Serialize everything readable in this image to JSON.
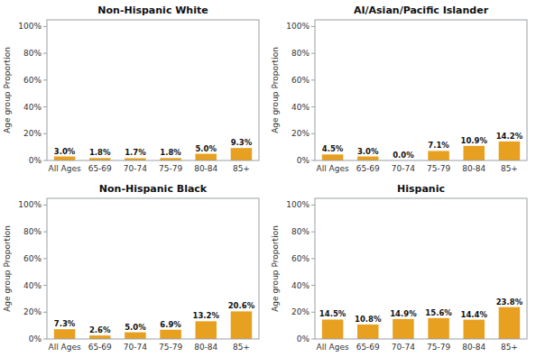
{
  "chart_data": [
    {
      "type": "bar",
      "title": "Non-Hispanic White",
      "categories": [
        "All Ages",
        "65-69",
        "70-74",
        "75-79",
        "80-84",
        "85+"
      ],
      "values": [
        3.0,
        1.8,
        1.7,
        1.8,
        5.0,
        9.3
      ],
      "value_labels": [
        "3.0%",
        "1.8%",
        "1.7%",
        "1.8%",
        "5.0%",
        "9.3%"
      ],
      "color": "#E8A020",
      "ylabel": "Age group Proportion",
      "ylim": [
        0,
        105
      ],
      "yticks": [
        {
          "value": 0,
          "label": "0%"
        },
        {
          "value": 20,
          "label": "20%"
        },
        {
          "value": 40,
          "label": "40%"
        },
        {
          "value": 60,
          "label": "60%"
        },
        {
          "value": 80,
          "label": "80%"
        },
        {
          "value": 100,
          "label": "100%"
        }
      ],
      "grid": false,
      "data_labels": true
    },
    {
      "type": "bar",
      "title": "AI/Asian/Pacific Islander",
      "categories": [
        "All Ages",
        "65-69",
        "70-74",
        "75-79",
        "80-84",
        "85+"
      ],
      "values": [
        4.5,
        3.0,
        0.0,
        7.1,
        10.9,
        14.2
      ],
      "value_labels": [
        "4.5%",
        "3.0%",
        "0.0%",
        "7.1%",
        "10.9%",
        "14.2%"
      ],
      "color": "#E8A020",
      "ylabel": "Age group Proportion",
      "ylim": [
        0,
        105
      ],
      "yticks": [
        {
          "value": 0,
          "label": "0%"
        },
        {
          "value": 20,
          "label": "20%"
        },
        {
          "value": 40,
          "label": "40%"
        },
        {
          "value": 60,
          "label": "60%"
        },
        {
          "value": 80,
          "label": "80%"
        },
        {
          "value": 100,
          "label": "100%"
        }
      ],
      "grid": false,
      "data_labels": true
    },
    {
      "type": "bar",
      "title": "Non-Hispanic Black",
      "categories": [
        "All Ages",
        "65-69",
        "70-74",
        "75-79",
        "80-84",
        "85+"
      ],
      "values": [
        7.3,
        2.6,
        5.0,
        6.9,
        13.2,
        20.6
      ],
      "value_labels": [
        "7.3%",
        "2.6%",
        "5.0%",
        "6.9%",
        "13.2%",
        "20.6%"
      ],
      "color": "#E8A020",
      "ylabel": "Age group Proportion",
      "ylim": [
        0,
        105
      ],
      "yticks": [
        {
          "value": 0,
          "label": "0%"
        },
        {
          "value": 20,
          "label": "20%"
        },
        {
          "value": 40,
          "label": "40%"
        },
        {
          "value": 60,
          "label": "60%"
        },
        {
          "value": 80,
          "label": "80%"
        },
        {
          "value": 100,
          "label": "100%"
        }
      ],
      "grid": false,
      "data_labels": true
    },
    {
      "type": "bar",
      "title": "Hispanic",
      "categories": [
        "All Ages",
        "65-69",
        "70-74",
        "75-79",
        "80-84",
        "85+"
      ],
      "values": [
        14.5,
        10.8,
        14.9,
        15.6,
        14.4,
        23.8
      ],
      "value_labels": [
        "14.5%",
        "10.8%",
        "14.9%",
        "15.6%",
        "14.4%",
        "23.8%"
      ],
      "color": "#E8A020",
      "ylabel": "Age group Proportion",
      "ylim": [
        0,
        105
      ],
      "yticks": [
        {
          "value": 0,
          "label": "0%"
        },
        {
          "value": 20,
          "label": "20%"
        },
        {
          "value": 40,
          "label": "40%"
        },
        {
          "value": 60,
          "label": "60%"
        },
        {
          "value": 80,
          "label": "80%"
        },
        {
          "value": 100,
          "label": "100%"
        }
      ],
      "grid": false,
      "data_labels": true
    }
  ]
}
